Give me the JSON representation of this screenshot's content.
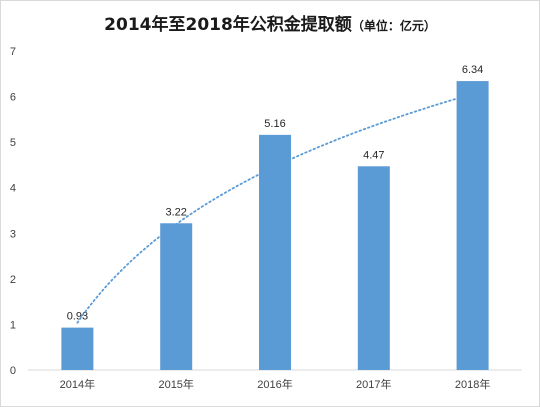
{
  "title": "2014年至2018年公积金提取额",
  "unit_note": "（单位：亿元）",
  "colors": {
    "bar": "#5b9bd5",
    "trend": "#5b9bd5",
    "axis": "#d9d9d9"
  },
  "chart_data": {
    "type": "bar",
    "title": "2014年至2018年公积金提取额（单位：亿元）",
    "categories": [
      "2014年",
      "2015年",
      "2016年",
      "2017年",
      "2018年"
    ],
    "values": [
      0.93,
      3.22,
      5.16,
      4.47,
      6.34
    ],
    "value_labels": [
      "0.93",
      "3.22",
      "5.16",
      "4.47",
      "6.34"
    ],
    "ylim": [
      0,
      7
    ],
    "yticks": [
      "0",
      "1",
      "2",
      "3",
      "4",
      "5",
      "6",
      "7"
    ],
    "trendline": "logarithmic",
    "grid": false,
    "legend": "none"
  }
}
